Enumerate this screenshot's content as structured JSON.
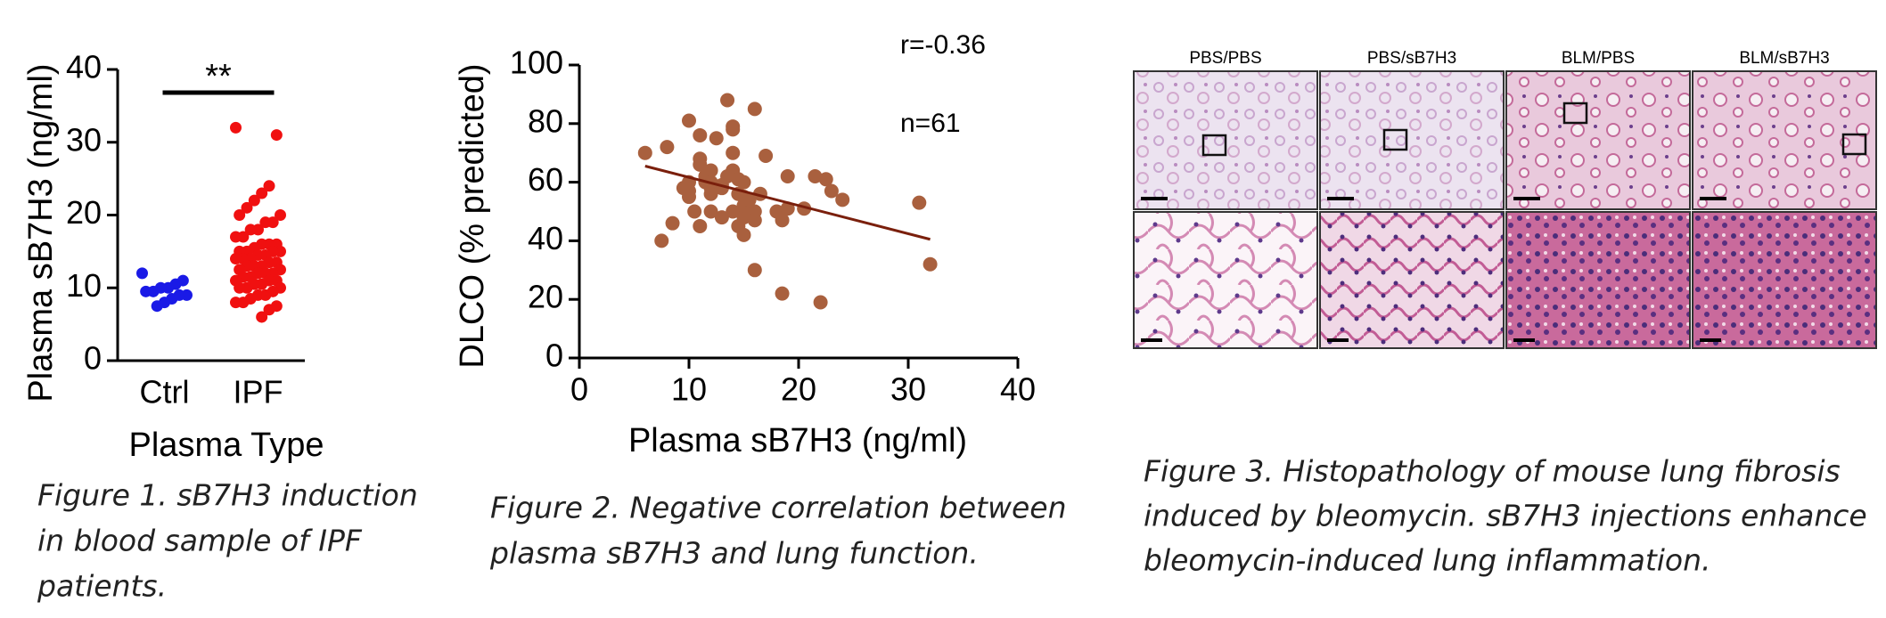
{
  "chart_data": [
    {
      "type": "strip",
      "ylabel": "Plasma sB7H3 (ng/ml)",
      "xlabel": "Plasma Type",
      "categories": [
        "Ctrl",
        "IPF"
      ],
      "colors": [
        "#1a1ae6",
        "#f01010"
      ],
      "values": [
        [
          12,
          11,
          10.5,
          10,
          10,
          9.5,
          9.5,
          9,
          9,
          8.5,
          8,
          7.5
        ],
        [
          32,
          31,
          24,
          23,
          22,
          21,
          20,
          20,
          19,
          19,
          18,
          18,
          17,
          17,
          16,
          16,
          16,
          15.5,
          15,
          15,
          15,
          15,
          14.5,
          14.5,
          14,
          14,
          14,
          13.5,
          13.5,
          13,
          13,
          13,
          12.5,
          12.5,
          12,
          12,
          12,
          11.5,
          11.5,
          11,
          11,
          11,
          10.5,
          10.5,
          10,
          10,
          10,
          9.5,
          9,
          9,
          8.5,
          8,
          8,
          7.5,
          7,
          6
        ]
      ],
      "annotation": "**",
      "ylim": [
        0,
        40
      ],
      "yticks": [
        0,
        10,
        20,
        30,
        40
      ],
      "caption": [
        "Figure 1. sB7H3 induction",
        "in blood sample of IPF",
        "patients."
      ]
    },
    {
      "type": "scatter",
      "xlabel": "Plasma sB7H3 (ng/ml)",
      "ylabel": "DLCO (% predicted)",
      "color": "#a9603e",
      "fit_color": "#7a1f0c",
      "x": [
        6,
        7.5,
        8,
        8.5,
        9.5,
        10,
        10,
        10,
        10,
        10.5,
        11,
        11,
        11,
        11,
        11.5,
        11.5,
        12,
        12,
        12,
        12,
        12.5,
        13,
        13,
        13,
        13.5,
        13.5,
        14,
        14,
        14,
        14,
        14,
        14.5,
        14.5,
        14.5,
        15,
        15,
        15,
        15,
        15,
        15.5,
        15.5,
        16,
        16,
        16,
        16,
        16.5,
        17,
        18,
        18.5,
        18.5,
        19,
        19,
        20.5,
        21.5,
        22,
        22.5,
        23,
        24,
        31,
        32,
        12
      ],
      "y": [
        70,
        40,
        72,
        46,
        58,
        81,
        55,
        57,
        60,
        50,
        66,
        68,
        45,
        76,
        62,
        60,
        50,
        56,
        58,
        64,
        75,
        59,
        48,
        58,
        62,
        88,
        79,
        78,
        70,
        64,
        50,
        61,
        56,
        45,
        55,
        48,
        42,
        60,
        52,
        50,
        54,
        85,
        50,
        30,
        47,
        56,
        69,
        50,
        47,
        22,
        62,
        51,
        51,
        62,
        19,
        61,
        57,
        54,
        53,
        32,
        60
      ],
      "fit": {
        "x": [
          6,
          32
        ],
        "y": [
          65.5,
          40.5
        ]
      },
      "annotations": [
        "r=-0.36",
        "n=61"
      ],
      "xlim": [
        0,
        40
      ],
      "xticks": [
        0,
        10,
        20,
        30,
        40
      ],
      "ylim": [
        0,
        100
      ],
      "yticks": [
        0,
        20,
        40,
        60,
        80,
        100
      ],
      "caption": [
        "Figure 2. Negative correlation between",
        "plasma sB7H3 and lung function."
      ]
    }
  ],
  "figure3": {
    "panel_labels": [
      "PBS/PBS",
      "PBS/sB7H3",
      "BLM/PBS",
      "BLM/sB7H3"
    ],
    "caption": [
      "Figure 3.  Histopathology of mouse lung fibrosis",
      "induced by bleomycin. sB7H3 injections enhance",
      "bleomycin-induced lung inflammation."
    ]
  }
}
